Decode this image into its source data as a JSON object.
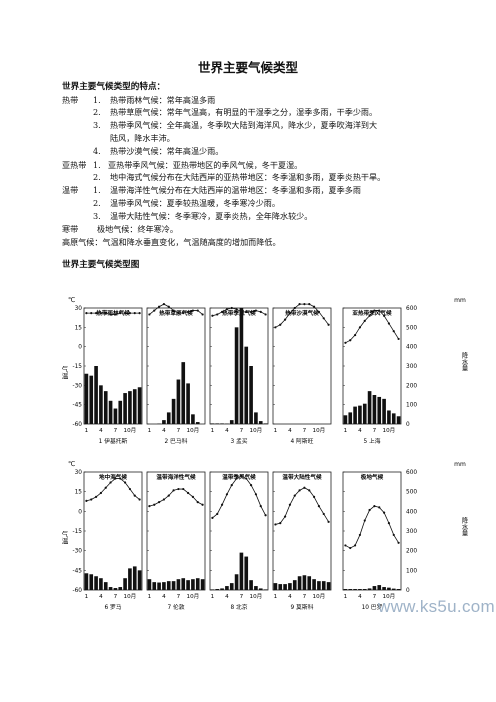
{
  "title": "世界主要气候类型",
  "features_heading": "世界主要气候类型的特点：",
  "groups": [
    {
      "zone": "热带",
      "items": [
        {
          "num": "1.",
          "lines": [
            "热带雨林气候：常年高温多雨"
          ]
        },
        {
          "num": "2.",
          "lines": [
            "热带草原气候：常年气温高，有明显的干湿季之分，湿季多雨，干季少雨。"
          ]
        },
        {
          "num": "3.",
          "lines": [
            "热带季风气候：全年高温，冬季吹大陆到海洋风，降水少，夏季吹海洋到大",
            "陆风，降水丰沛。"
          ]
        },
        {
          "num": "4.",
          "lines": [
            "热带沙漠气候：常年高温少雨。"
          ]
        }
      ]
    },
    {
      "zone": "亚热带",
      "items": [
        {
          "num": "1.",
          "lines": [
            "亚热带季风气候：亚热带地区的季风气候，冬干夏湿。"
          ]
        },
        {
          "num": "2.",
          "lines": [
            "地中海式气候分布在大陆西岸的亚热带地区：冬季温和多雨，夏季炎热干旱。"
          ]
        }
      ]
    },
    {
      "zone": "温带",
      "items": [
        {
          "num": "1.",
          "lines": [
            "温带海洋性气候分布在大陆西岸的温带地区：冬季温和多雨，夏季多雨"
          ]
        },
        {
          "num": "2.",
          "lines": [
            "温带季风气候：夏季较热温暖，冬季寒冷少雨。"
          ]
        },
        {
          "num": "3.",
          "lines": [
            "温带大陆性气候：冬季寒冷，夏季炎热，全年降水较少。"
          ]
        }
      ]
    }
  ],
  "cold_zone": {
    "zone": "寒带",
    "text": "极地气候：终年寒冷。"
  },
  "highland": "高原气候：气温和降水垂直变化，气温随高度的增加而降低。",
  "chart_heading": "世界主要气候类型图",
  "charts": {
    "temp_unit": "℃",
    "precip_unit": "mm",
    "temp_axis_label": "气温",
    "precip_axis_label": "降水量",
    "row1_temp_ticks": [
      "30",
      "15",
      "0",
      "-15",
      "-30",
      "-45",
      "-60"
    ],
    "row2_temp_ticks": [
      "30",
      "15",
      "0",
      "-15",
      "-30",
      "-45",
      "-60"
    ],
    "precip_ticks": [
      "600",
      "500",
      "400",
      "300",
      "200",
      "100",
      "0"
    ],
    "month_ticks": [
      "1",
      "4",
      "7",
      "10月"
    ],
    "panels_row1": [
      {
        "title": "热带雨林气候",
        "caption": "1 伊基托斯"
      },
      {
        "title": "热带草原气候",
        "caption": "2 巴马科"
      },
      {
        "title": "热带季风气候",
        "caption": "3 孟买"
      },
      {
        "title": "热带沙漠气候",
        "caption": "4 阿斯旺"
      },
      {
        "title": "亚热带季风气候",
        "caption": "5 上海"
      }
    ],
    "panels_row2": [
      {
        "title": "地中海气候",
        "caption": "6 罗马"
      },
      {
        "title": "温带海洋性气候",
        "caption": "7 伦敦"
      },
      {
        "title": "温带季风气候",
        "caption": "8 北京"
      },
      {
        "title": "温带大陆性气候",
        "caption": "9 莫斯科"
      },
      {
        "title": "极地气候",
        "caption": "10 巴罗"
      }
    ]
  },
  "chart_data": [
    {
      "type": "bar+line",
      "name": "热带雨林气候",
      "temperature": [
        26,
        26,
        26,
        26,
        26,
        25,
        25,
        26,
        26,
        26,
        26,
        26
      ],
      "precipitation": [
        260,
        250,
        300,
        200,
        170,
        120,
        80,
        120,
        160,
        170,
        180,
        190
      ]
    },
    {
      "type": "bar+line",
      "name": "热带草原气候",
      "temperature": [
        25,
        28,
        31,
        33,
        31,
        28,
        26,
        26,
        27,
        28,
        28,
        25
      ],
      "precipitation": [
        0,
        0,
        2,
        20,
        60,
        130,
        230,
        320,
        210,
        50,
        10,
        0
      ]
    },
    {
      "type": "bar+line",
      "name": "热带季风气候",
      "temperature": [
        24,
        25,
        27,
        29,
        30,
        29,
        27,
        27,
        27,
        28,
        27,
        25
      ],
      "precipitation": [
        3,
        3,
        3,
        2,
        20,
        500,
        650,
        400,
        300,
        60,
        15,
        3
      ]
    },
    {
      "type": "bar+line",
      "name": "热带沙漠气候",
      "temperature": [
        15,
        17,
        21,
        26,
        30,
        33,
        33,
        33,
        31,
        27,
        22,
        17
      ],
      "precipitation": [
        0,
        0,
        0,
        0,
        0,
        0,
        0,
        0,
        0,
        0,
        0,
        0
      ]
    },
    {
      "type": "bar+line",
      "name": "亚热带季风气候",
      "temperature": [
        3,
        5,
        9,
        15,
        20,
        24,
        28,
        28,
        24,
        18,
        12,
        6
      ],
      "precipitation": [
        45,
        60,
        90,
        95,
        105,
        170,
        150,
        140,
        130,
        70,
        55,
        40
      ]
    },
    {
      "type": "bar+line",
      "name": "地中海气候",
      "temperature": [
        8,
        9,
        11,
        14,
        18,
        22,
        25,
        25,
        22,
        17,
        12,
        9
      ],
      "precipitation": [
        85,
        80,
        70,
        60,
        40,
        15,
        10,
        15,
        60,
        110,
        120,
        100
      ]
    },
    {
      "type": "bar+line",
      "name": "温带海洋性气候",
      "temperature": [
        4,
        5,
        7,
        9,
        12,
        16,
        17,
        17,
        14,
        11,
        7,
        5
      ],
      "precipitation": [
        55,
        40,
        38,
        40,
        45,
        45,
        55,
        60,
        50,
        55,
        60,
        55
      ]
    },
    {
      "type": "bar+line",
      "name": "温带季风气候",
      "temperature": [
        -5,
        -2,
        5,
        13,
        20,
        25,
        27,
        25,
        20,
        13,
        4,
        -3
      ],
      "precipitation": [
        3,
        5,
        8,
        20,
        35,
        80,
        190,
        170,
        50,
        20,
        8,
        3
      ]
    },
    {
      "type": "bar+line",
      "name": "温带大陆性气候",
      "temperature": [
        -10,
        -9,
        -4,
        5,
        12,
        16,
        18,
        16,
        11,
        4,
        -2,
        -8
      ],
      "precipitation": [
        35,
        30,
        30,
        35,
        50,
        70,
        75,
        70,
        55,
        45,
        45,
        40
      ]
    },
    {
      "type": "bar+line",
      "name": "极地气候",
      "temperature": [
        -26,
        -28,
        -26,
        -18,
        -7,
        1,
        4,
        3,
        -1,
        -9,
        -18,
        -24
      ],
      "precipitation": [
        5,
        5,
        5,
        5,
        5,
        8,
        20,
        25,
        15,
        12,
        7,
        5
      ]
    }
  ],
  "watermark": "www.ks5u.com"
}
